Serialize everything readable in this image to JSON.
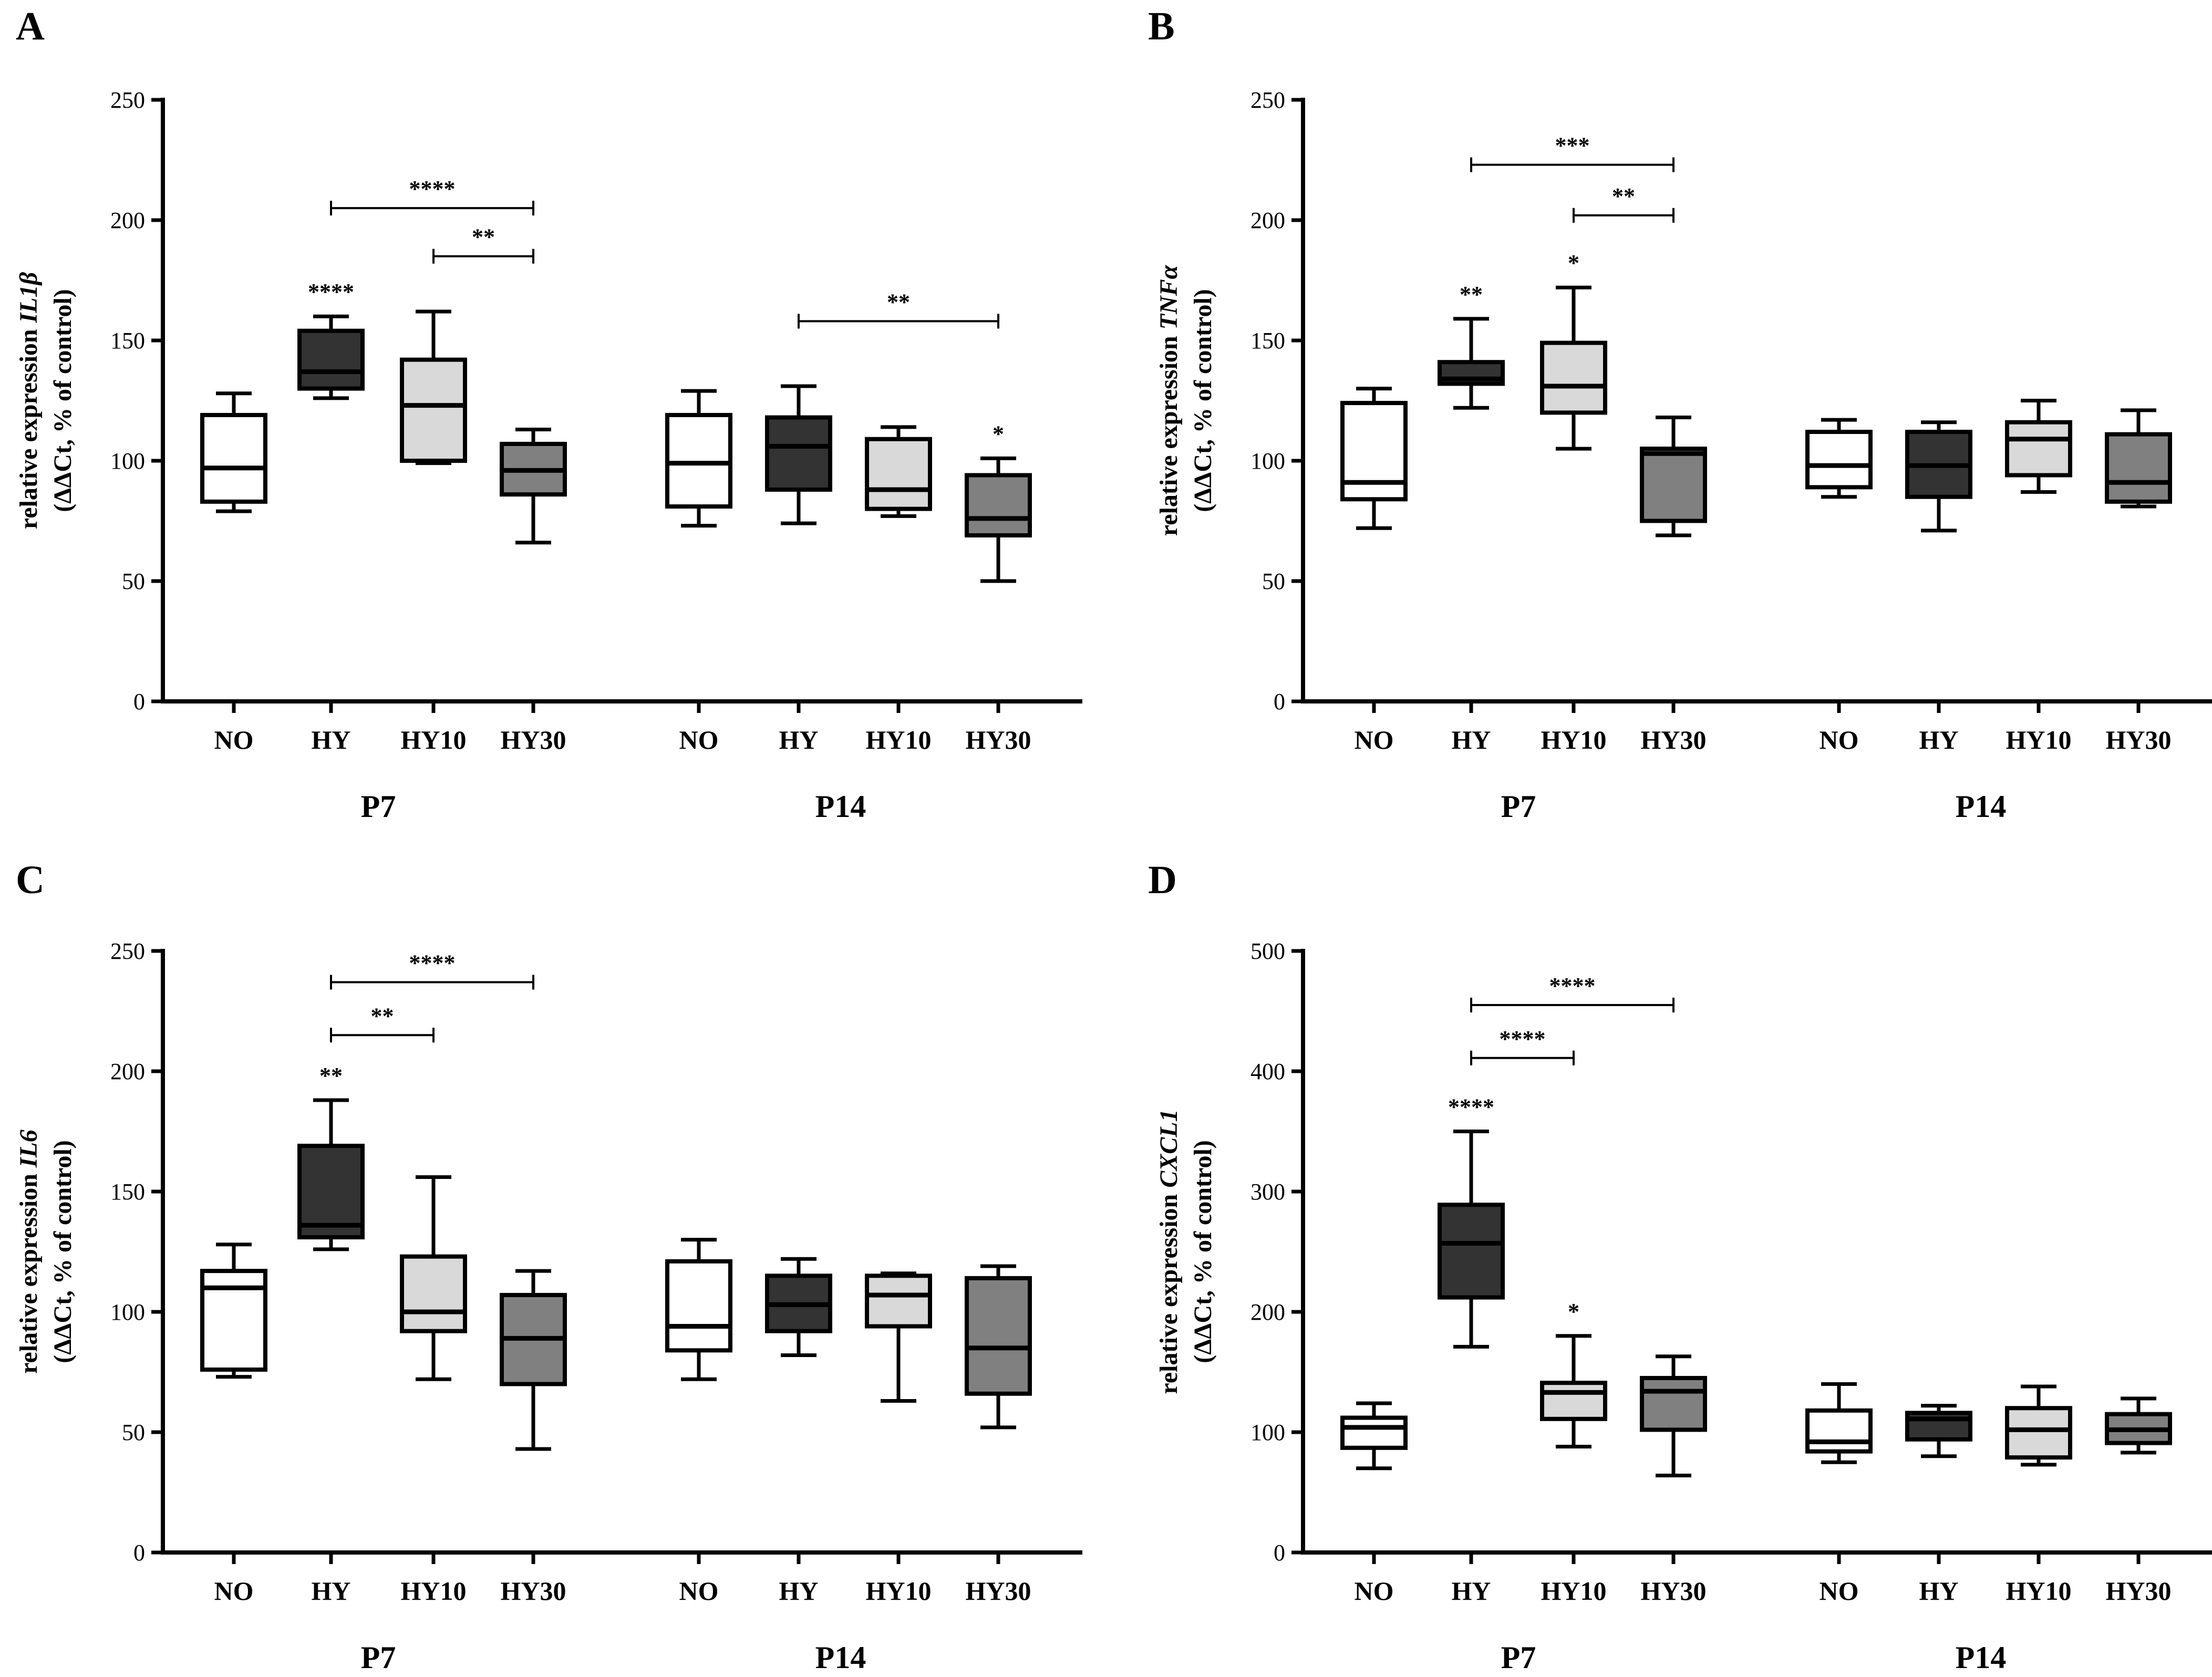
{
  "chart_data": [
    {
      "type": "box",
      "panel": "A",
      "ylabel_line1_prefix": "relative expression ",
      "ylabel_gene": "IL1β",
      "ylabel_line2": "(ΔΔCt, % of control)",
      "ylim": [
        0,
        250
      ],
      "yticks": [
        0,
        50,
        100,
        150,
        200,
        250
      ],
      "groups": [
        "P7",
        "P14"
      ],
      "categories": [
        "NO",
        "HY",
        "HY10",
        "HY30",
        "NO",
        "HY",
        "HY10",
        "HY30"
      ],
      "colors": [
        "#ffffff",
        "#333333",
        "#d9d9d9",
        "#808080",
        "#ffffff",
        "#333333",
        "#d9d9d9",
        "#808080"
      ],
      "boxes": [
        {
          "min": 79,
          "q1": 83,
          "median": 97,
          "q3": 119,
          "max": 128
        },
        {
          "min": 126,
          "q1": 130,
          "median": 137,
          "q3": 154,
          "max": 160
        },
        {
          "min": 99,
          "q1": 100,
          "median": 123,
          "q3": 142,
          "max": 162
        },
        {
          "min": 66,
          "q1": 86,
          "median": 96,
          "q3": 107,
          "max": 113
        },
        {
          "min": 73,
          "q1": 81,
          "median": 99,
          "q3": 119,
          "max": 129
        },
        {
          "min": 74,
          "q1": 88,
          "median": 106,
          "q3": 118,
          "max": 131
        },
        {
          "min": 77,
          "q1": 80,
          "median": 88,
          "q3": 109,
          "max": 114
        },
        {
          "min": 50,
          "q1": 69,
          "median": 76,
          "q3": 94,
          "max": 101
        }
      ],
      "significance_marks": [
        {
          "box": 1,
          "label": "****"
        },
        {
          "box": 7,
          "label": "*"
        }
      ],
      "brackets": [
        {
          "from": 1,
          "to": 3,
          "y": 205,
          "label": "****"
        },
        {
          "from": 2,
          "to": 3,
          "y": 185,
          "label": "**"
        },
        {
          "from": 5,
          "to": 7,
          "y": 158,
          "label": "**"
        }
      ]
    },
    {
      "type": "box",
      "panel": "B",
      "ylabel_line1_prefix": "relative expression ",
      "ylabel_gene": "TNFα",
      "ylabel_line2": "(ΔΔCt, % of control)",
      "ylim": [
        0,
        250
      ],
      "yticks": [
        0,
        50,
        100,
        150,
        200,
        250
      ],
      "groups": [
        "P7",
        "P14"
      ],
      "categories": [
        "NO",
        "HY",
        "HY10",
        "HY30",
        "NO",
        "HY",
        "HY10",
        "HY30"
      ],
      "colors": [
        "#ffffff",
        "#333333",
        "#d9d9d9",
        "#808080",
        "#ffffff",
        "#333333",
        "#d9d9d9",
        "#808080"
      ],
      "boxes": [
        {
          "min": 72,
          "q1": 84,
          "median": 91,
          "q3": 124,
          "max": 130
        },
        {
          "min": 122,
          "q1": 132,
          "median": 134,
          "q3": 141,
          "max": 159
        },
        {
          "min": 105,
          "q1": 120,
          "median": 131,
          "q3": 149,
          "max": 172
        },
        {
          "min": 69,
          "q1": 75,
          "median": 103,
          "q3": 105,
          "max": 118
        },
        {
          "min": 85,
          "q1": 89,
          "median": 98,
          "q3": 112,
          "max": 117
        },
        {
          "min": 71,
          "q1": 85,
          "median": 98,
          "q3": 112,
          "max": 116
        },
        {
          "min": 87,
          "q1": 94,
          "median": 109,
          "q3": 116,
          "max": 125
        },
        {
          "min": 81,
          "q1": 83,
          "median": 91,
          "q3": 111,
          "max": 121
        }
      ],
      "significance_marks": [
        {
          "box": 1,
          "label": "**"
        },
        {
          "box": 2,
          "label": "*"
        }
      ],
      "brackets": [
        {
          "from": 1,
          "to": 3,
          "y": 223,
          "label": "***"
        },
        {
          "from": 2,
          "to": 3,
          "y": 202,
          "label": "**"
        }
      ]
    },
    {
      "type": "box",
      "panel": "C",
      "ylabel_line1_prefix": "relative expression ",
      "ylabel_gene": "IL6",
      "ylabel_line2": "(ΔΔCt, % of control)",
      "ylim": [
        0,
        250
      ],
      "yticks": [
        0,
        50,
        100,
        150,
        200,
        250
      ],
      "groups": [
        "P7",
        "P14"
      ],
      "categories": [
        "NO",
        "HY",
        "HY10",
        "HY30",
        "NO",
        "HY",
        "HY10",
        "HY30"
      ],
      "colors": [
        "#ffffff",
        "#333333",
        "#d9d9d9",
        "#808080",
        "#ffffff",
        "#333333",
        "#d9d9d9",
        "#808080"
      ],
      "boxes": [
        {
          "min": 73,
          "q1": 76,
          "median": 110,
          "q3": 117,
          "max": 128
        },
        {
          "min": 126,
          "q1": 131,
          "median": 136,
          "q3": 169,
          "max": 188
        },
        {
          "min": 72,
          "q1": 92,
          "median": 100,
          "q3": 123,
          "max": 156
        },
        {
          "min": 43,
          "q1": 70,
          "median": 89,
          "q3": 107,
          "max": 117
        },
        {
          "min": 72,
          "q1": 84,
          "median": 94,
          "q3": 121,
          "max": 130
        },
        {
          "min": 82,
          "q1": 92,
          "median": 103,
          "q3": 115,
          "max": 122
        },
        {
          "min": 63,
          "q1": 94,
          "median": 107,
          "q3": 115,
          "max": 116
        },
        {
          "min": 52,
          "q1": 66,
          "median": 85,
          "q3": 114,
          "max": 119
        }
      ],
      "significance_marks": [
        {
          "box": 1,
          "label": "**"
        }
      ],
      "brackets": [
        {
          "from": 1,
          "to": 3,
          "y": 237,
          "label": "****"
        },
        {
          "from": 1,
          "to": 2,
          "y": 215,
          "label": "**"
        }
      ]
    },
    {
      "type": "box",
      "panel": "D",
      "ylabel_line1_prefix": "relative expression ",
      "ylabel_gene": "CXCL1",
      "ylabel_line2": "(ΔΔCt, % of control)",
      "ylim": [
        0,
        500
      ],
      "yticks": [
        0,
        100,
        200,
        300,
        400,
        500
      ],
      "groups": [
        "P7",
        "P14"
      ],
      "categories": [
        "NO",
        "HY",
        "HY10",
        "HY30",
        "NO",
        "HY",
        "HY10",
        "HY30"
      ],
      "colors": [
        "#ffffff",
        "#333333",
        "#d9d9d9",
        "#808080",
        "#ffffff",
        "#333333",
        "#d9d9d9",
        "#808080"
      ],
      "boxes": [
        {
          "min": 70,
          "q1": 87,
          "median": 104,
          "q3": 112,
          "max": 124
        },
        {
          "min": 171,
          "q1": 212,
          "median": 257,
          "q3": 289,
          "max": 350
        },
        {
          "min": 88,
          "q1": 111,
          "median": 133,
          "q3": 141,
          "max": 180
        },
        {
          "min": 64,
          "q1": 102,
          "median": 134,
          "q3": 145,
          "max": 163
        },
        {
          "min": 75,
          "q1": 84,
          "median": 92,
          "q3": 118,
          "max": 140
        },
        {
          "min": 80,
          "q1": 94,
          "median": 111,
          "q3": 116,
          "max": 122
        },
        {
          "min": 73,
          "q1": 79,
          "median": 102,
          "q3": 120,
          "max": 138
        },
        {
          "min": 83,
          "q1": 91,
          "median": 102,
          "q3": 115,
          "max": 128
        }
      ],
      "significance_marks": [
        {
          "box": 1,
          "label": "****"
        },
        {
          "box": 2,
          "label": "*"
        }
      ],
      "brackets": [
        {
          "from": 1,
          "to": 3,
          "y": 455,
          "label": "****"
        },
        {
          "from": 1,
          "to": 2,
          "y": 411,
          "label": "****"
        }
      ]
    }
  ]
}
